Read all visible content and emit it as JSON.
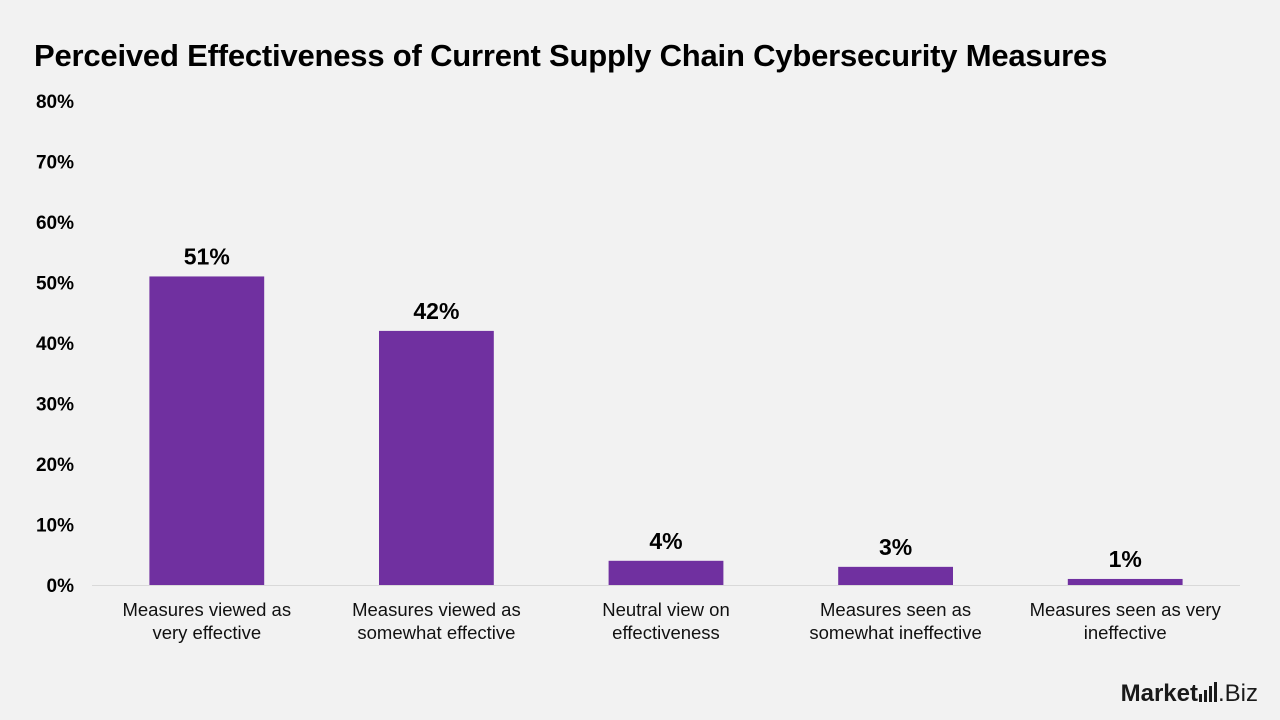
{
  "chart_data": {
    "type": "bar",
    "title": "Perceived Effectiveness of Current Supply Chain Cybersecurity Measures",
    "categories": [
      [
        "Measures viewed as",
        "very effective"
      ],
      [
        "Measures viewed as",
        "somewhat effective"
      ],
      [
        "Neutral view on",
        "effectiveness"
      ],
      [
        "Measures seen as",
        "somewhat ineffective"
      ],
      [
        "Measures seen as very",
        "ineffective"
      ]
    ],
    "values": [
      51,
      42,
      4,
      3,
      1
    ],
    "value_labels": [
      "51%",
      "42%",
      "4%",
      "3%",
      "1%"
    ],
    "ylim": [
      0,
      80
    ],
    "y_ticks": [
      "0%",
      "10%",
      "20%",
      "30%",
      "40%",
      "50%",
      "60%",
      "70%",
      "80%"
    ],
    "xlabel": "",
    "ylabel": "",
    "grid": false,
    "bar_color": "#7030a0",
    "axis_color": "#d9d9d9"
  },
  "logo": {
    "text_bold": "Market",
    "text_light": ".Biz"
  }
}
